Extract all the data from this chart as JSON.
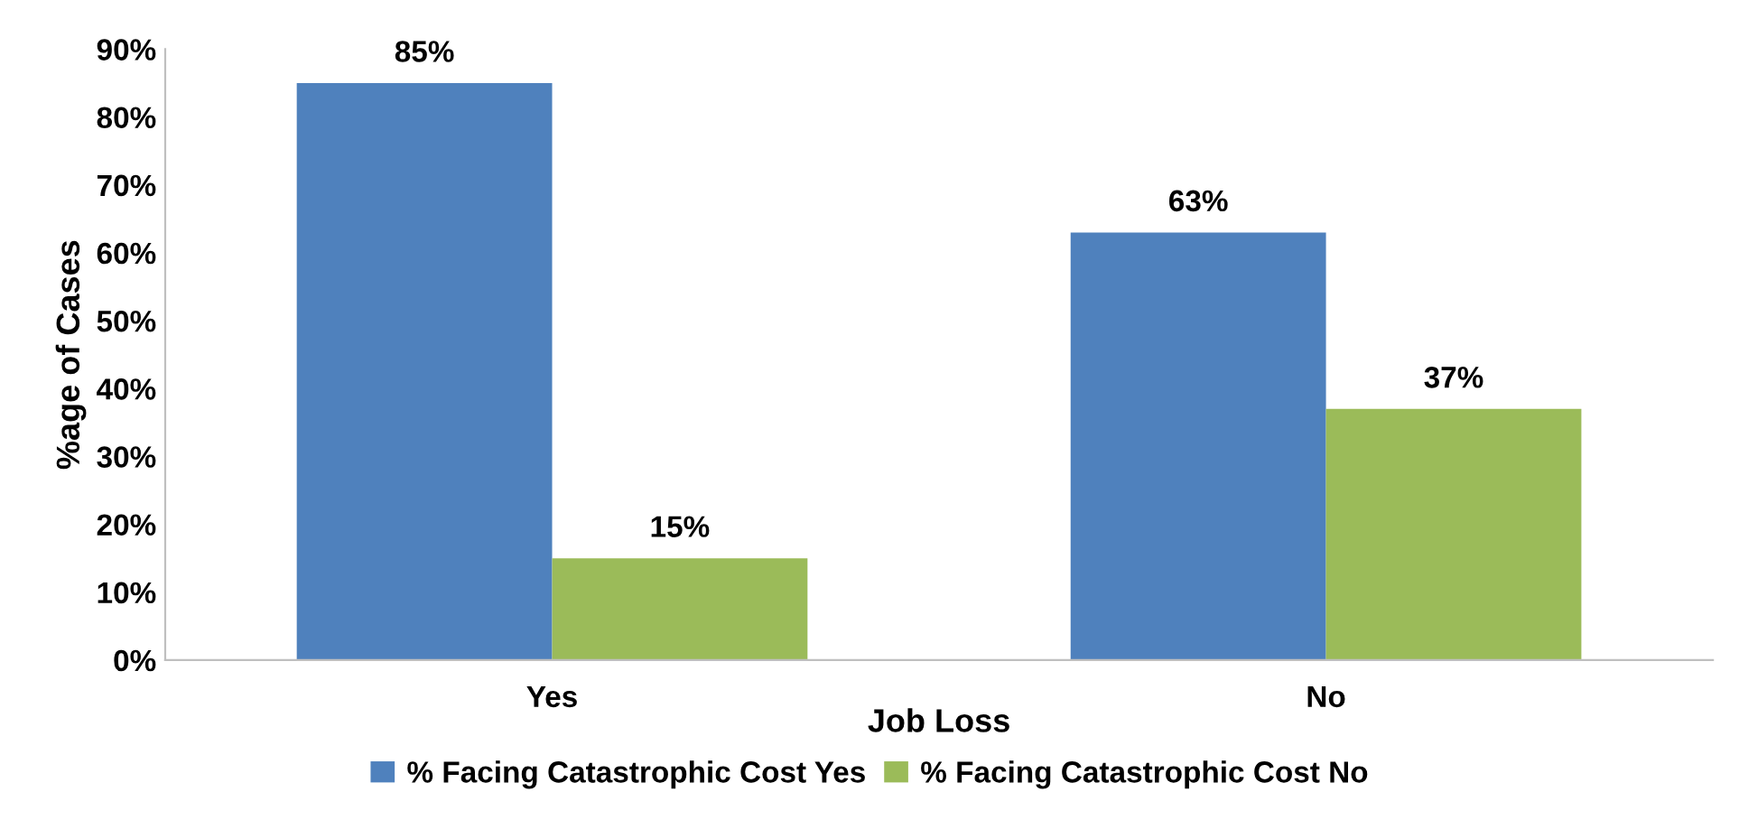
{
  "chart_data": {
    "type": "bar",
    "categories": [
      "Yes",
      "No"
    ],
    "xlabel": "Job Loss",
    "ylabel": "%age of Cases",
    "series": [
      {
        "name": "% Facing Catastrophic Cost Yes",
        "color": "#4f81bd",
        "values": [
          85,
          63
        ],
        "value_labels": [
          "85%",
          "63%"
        ]
      },
      {
        "name": "% Facing Catastrophic Cost No",
        "color": "#9bbb59",
        "values": [
          15,
          37
        ],
        "value_labels": [
          "15%",
          "37%"
        ]
      }
    ],
    "ylim": [
      0,
      90
    ],
    "yticks": [
      {
        "value": 0,
        "label": "0%"
      },
      {
        "value": 10,
        "label": "10%"
      },
      {
        "value": 20,
        "label": "20%"
      },
      {
        "value": 30,
        "label": "30%"
      },
      {
        "value": 40,
        "label": "40%"
      },
      {
        "value": 50,
        "label": "50%"
      },
      {
        "value": 60,
        "label": "60%"
      },
      {
        "value": 70,
        "label": "70%"
      },
      {
        "value": 80,
        "label": "80%"
      },
      {
        "value": 90,
        "label": "90%"
      }
    ],
    "grid": false,
    "legend": "bottom"
  }
}
